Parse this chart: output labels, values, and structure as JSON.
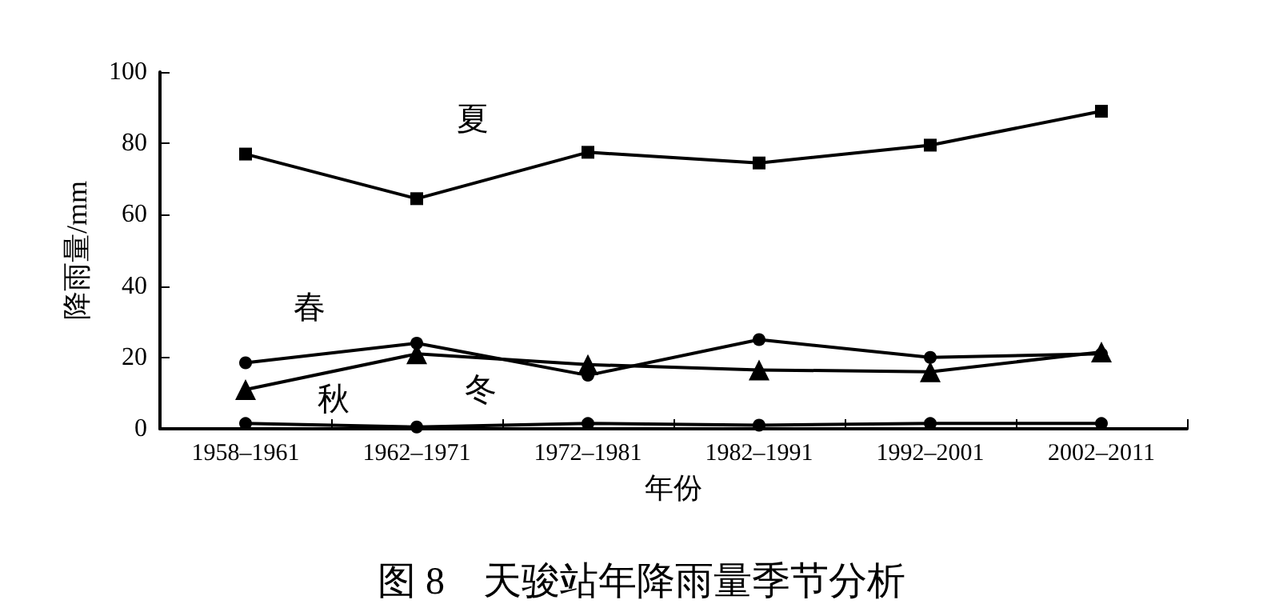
{
  "chart_data": {
    "type": "line",
    "title": "图 8　天骏站年降雨量季节分析",
    "xlabel": "年份",
    "ylabel": "降雨量/mm",
    "categories": [
      "1958–1961",
      "1962–1971",
      "1972–1981",
      "1982–1991",
      "1992–2001",
      "2002–2011"
    ],
    "series": [
      {
        "name": "夏",
        "color": "#000000",
        "marker": "square",
        "values": [
          77,
          64.5,
          77.5,
          74.5,
          79.5,
          89
        ]
      },
      {
        "name": "春",
        "color": "#000000",
        "marker": "circle",
        "values": [
          18.5,
          24,
          15,
          25,
          20,
          21
        ]
      },
      {
        "name": "秋",
        "color": "#000000",
        "marker": "triangle",
        "values": [
          11,
          21,
          18,
          16.5,
          16,
          21.5
        ]
      },
      {
        "name": "冬",
        "color": "#000000",
        "marker": "circle",
        "values": [
          1.5,
          0.5,
          1.5,
          1,
          1.5,
          1.5
        ]
      }
    ],
    "ylim": [
      0,
      100
    ],
    "yticks": [
      0,
      20,
      40,
      60,
      80,
      100
    ],
    "grid": false,
    "legend": false,
    "line_style": "solid"
  }
}
